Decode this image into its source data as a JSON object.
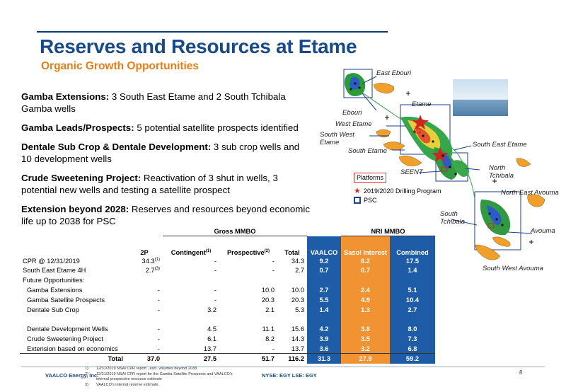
{
  "header": {
    "title": "Reserves and Resources at Etame",
    "subtitle": "Organic Growth Opportunities"
  },
  "bullets": [
    {
      "bold": "Gamba Extensions:",
      "text": " 3 South East Etame and 2 South Tchibala Gamba wells"
    },
    {
      "bold": "Gamba Leads/Prospects:",
      "text": " 5 potential satellite prospects identified"
    },
    {
      "bold": "Dentale Sub Crop & Dentale Development:",
      "text": " 3 sub crop wells and 10 development wells"
    },
    {
      "bold": "Crude Sweetening Project:",
      "text": " Reactivation of 3 shut in wells, 3 potential new wells and testing a satellite prospect"
    },
    {
      "bold": "Extension beyond 2028:",
      "text": " Reserves and resources beyond economic life up to 2038 for PSC"
    }
  ],
  "map": {
    "labels": {
      "east_ebouri": "East Ebouri",
      "ebouri": "Ebouri",
      "etame": "Etame",
      "west_etame": "West Etame",
      "south_west_etame": "South West Etame",
      "south_etame": "South Etame",
      "south_east_etame": "South East Etame",
      "seent": "SEENT",
      "north_tchibala": "North Tchibala",
      "north_east_avouma": "North East Avouma",
      "south_tchibala": "South Tchibala",
      "avouma": "Avouma",
      "south_west_avouma": "South West Avouma"
    },
    "legend": {
      "platforms": "Platforms",
      "drilling": "2019/2020 Drilling Program",
      "psc": "PSC"
    },
    "colors": {
      "field_orange": "#f0a02a",
      "psc_blue": "#1d3f8f",
      "star": "#d22222"
    }
  },
  "table": {
    "group_headers": {
      "gross": "Gross MMBO",
      "nri": "NRI MMBO"
    },
    "columns": {
      "p2": "2P",
      "contingent": "Contingent",
      "contingent_note": "(1)",
      "prospective": "Prospective",
      "prospective_note": "(2)",
      "total": "Total",
      "vaalco": "VAALCO",
      "sasol": "Sasol Interest",
      "combined": "Combined"
    },
    "rows": [
      {
        "label": "CPR @ 12/31/2019",
        "p2": "34.3",
        "p2_note": "(1)",
        "con": "-",
        "pro": "-",
        "tot": "34.3",
        "v": "9.2",
        "s": "8.2",
        "c": "17.5"
      },
      {
        "label": "South East Etame 4H",
        "p2": "2.7",
        "p2_note": "(3)",
        "con": "-",
        "pro": "-",
        "tot": "2.7",
        "v": "0.7",
        "s": "0.7",
        "c": "1.4"
      },
      {
        "label": "Future Opportunities:",
        "p2": "",
        "p2_note": "",
        "con": "",
        "pro": "",
        "tot": "",
        "v": "",
        "s": "",
        "c": ""
      },
      {
        "label": "Gamba Extensions",
        "p2": "-",
        "p2_note": "",
        "con": "-",
        "pro": "10.0",
        "tot": "10.0",
        "v": "2.7",
        "s": "2.4",
        "c": "5.1"
      },
      {
        "label": "Gamba Satellite Prospects",
        "p2": "-",
        "p2_note": "",
        "con": "-",
        "pro": "20.3",
        "tot": "20.3",
        "v": "5.5",
        "s": "4.9",
        "c": "10.4"
      },
      {
        "label": "Dentale Sub Crop",
        "p2": "-",
        "p2_note": "",
        "con": "3.2",
        "pro": "2.1",
        "tot": "5.3",
        "v": "1.4",
        "s": "1.3",
        "c": "2.7"
      },
      {
        "label": "Dentale Development Wells",
        "p2": "-",
        "p2_note": "",
        "con": "4.5",
        "pro": "11.1",
        "tot": "15.6",
        "v": "4.2",
        "s": "3.8",
        "c": "8.0"
      },
      {
        "label": "Crude Sweetening Project",
        "p2": "-",
        "p2_note": "",
        "con": "6.1",
        "pro": "8.2",
        "tot": "14.3",
        "v": "3.9",
        "s": "3.5",
        "c": "7.3"
      },
      {
        "label": "Extension based on economics",
        "p2": "-",
        "p2_note": "",
        "con": "13.7",
        "pro": "-",
        "tot": "13.7",
        "v": "3.6",
        "s": "3.2",
        "c": "6.8"
      }
    ],
    "total": {
      "label": "Total",
      "p2": "37.0",
      "con": "27.5",
      "pro": "51.7",
      "tot": "116.2",
      "v": "31.3",
      "s": "27.9",
      "c": "59.2"
    }
  },
  "footer": {
    "company": "VAALCO Energy, Inc.",
    "notes": [
      {
        "k": "1)",
        "t": "12/31/2019 NSAI CPR report , excl. volumes beyond 2038"
      },
      {
        "k": "2)",
        "t": "12/31/2019 NSAI CPR report for the Gamba Satellite Prospects and VAALCO's internal prospective resource estimate"
      },
      {
        "k": "3)",
        "t": "VAALCO's internal reserve estimate."
      }
    ],
    "ticker": "NYSE: EGY   LSE: EGY",
    "page": "8"
  }
}
